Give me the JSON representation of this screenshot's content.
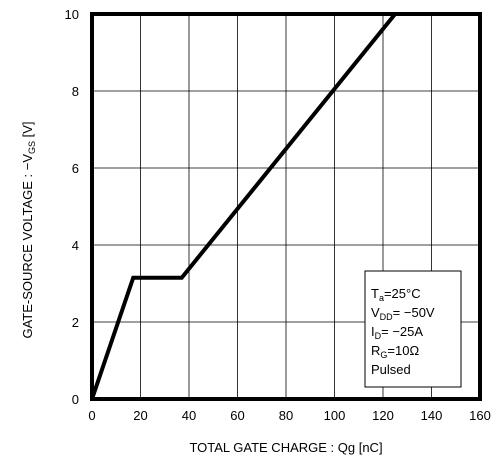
{
  "chart_data": {
    "type": "line",
    "title": "",
    "xlabel": "TOTAL GATE CHARGE : Qg  [nC]",
    "ylabel": {
      "main": "GATE-SOURCE VOLTAGE : −V",
      "sub": "GS",
      "suffix": " [V]"
    },
    "xlim": [
      0,
      160
    ],
    "ylim": [
      0,
      10
    ],
    "x_ticks": [
      0,
      20,
      40,
      60,
      80,
      100,
      120,
      140,
      160
    ],
    "y_ticks": [
      0,
      2,
      4,
      6,
      8,
      10
    ],
    "grid": true,
    "series": [
      {
        "x": [
          0,
          17,
          37,
          125
        ],
        "y": [
          0,
          3.15,
          3.15,
          10
        ]
      }
    ],
    "legend_placement": "bottom-right",
    "conditions": [
      {
        "main": "T",
        "sub": "a",
        "rest": "=25°C"
      },
      {
        "main": "V",
        "sub": "DD",
        "rest": "= −50V"
      },
      {
        "main": "I",
        "sub": "D",
        "rest": "= −25A"
      },
      {
        "main": "R",
        "sub": "G",
        "rest": "=10Ω"
      },
      {
        "main": "Pulsed",
        "sub": "",
        "rest": ""
      }
    ]
  }
}
